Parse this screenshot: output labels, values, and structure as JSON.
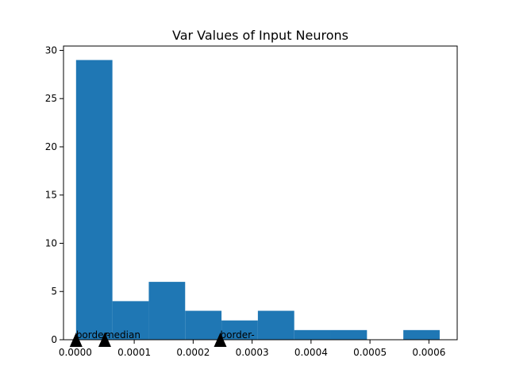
{
  "chart_data": {
    "type": "bar",
    "title": "Var Values of Input Neurons",
    "xlabel": "",
    "ylabel": "",
    "xlim": [
      -2e-05,
      0.000648
    ],
    "ylim": [
      0,
      30.45
    ],
    "grid": false,
    "legend": "none",
    "bar_color": "#1f77b4",
    "bins": [
      {
        "x0": 1.3e-06,
        "x1": 6.3e-05,
        "count": 29
      },
      {
        "x0": 6.3e-05,
        "x1": 0.0001247,
        "count": 4
      },
      {
        "x0": 0.0001247,
        "x1": 0.0001864,
        "count": 6
      },
      {
        "x0": 0.0001864,
        "x1": 0.0002481,
        "count": 3
      },
      {
        "x0": 0.0002481,
        "x1": 0.0003098,
        "count": 2
      },
      {
        "x0": 0.0003098,
        "x1": 0.0003715,
        "count": 3
      },
      {
        "x0": 0.0003715,
        "x1": 0.0004332,
        "count": 1
      },
      {
        "x0": 0.0004332,
        "x1": 0.0004949,
        "count": 1
      },
      {
        "x0": 0.0004949,
        "x1": 0.0005566,
        "count": 0
      },
      {
        "x0": 0.0005566,
        "x1": 0.0006183,
        "count": 1
      }
    ],
    "x_ticks": [
      {
        "value": 0.0,
        "label": "0.0000"
      },
      {
        "value": 0.0001,
        "label": "0.0001"
      },
      {
        "value": 0.0002,
        "label": "0.0002"
      },
      {
        "value": 0.0003,
        "label": "0.0003"
      },
      {
        "value": 0.0004,
        "label": "0.0004"
      },
      {
        "value": 0.0005,
        "label": "0.0005"
      },
      {
        "value": 0.0006,
        "label": "0.0006"
      }
    ],
    "y_ticks": [
      {
        "value": 0,
        "label": "0"
      },
      {
        "value": 5,
        "label": "5"
      },
      {
        "value": 10,
        "label": "10"
      },
      {
        "value": 15,
        "label": "15"
      },
      {
        "value": 20,
        "label": "20"
      },
      {
        "value": 25,
        "label": "25"
      },
      {
        "value": 30,
        "label": "30"
      }
    ],
    "annotations": [
      {
        "x": 1.3e-06,
        "label": "border-"
      },
      {
        "x": 5e-05,
        "label": "median"
      },
      {
        "x": 0.000246,
        "label": "border-"
      }
    ],
    "marker_color": "#000000"
  }
}
